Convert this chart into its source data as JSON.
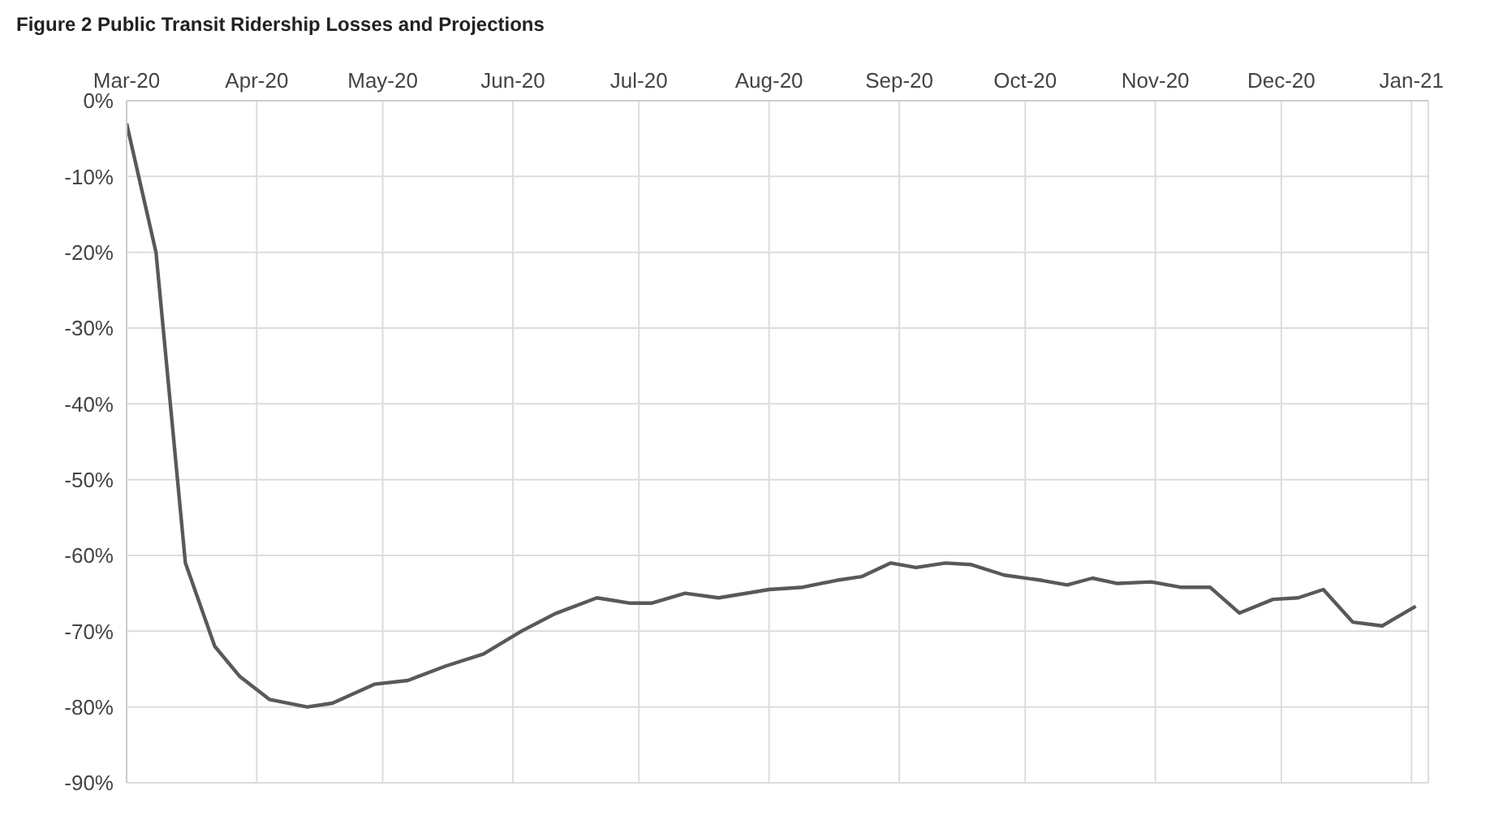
{
  "chart_data": {
    "type": "line",
    "title": "Figure 2 Public Transit Ridership Losses and Projections",
    "x": [
      "2020-03-01",
      "2020-03-08",
      "2020-03-15",
      "2020-03-22",
      "2020-03-28",
      "2020-04-04",
      "2020-04-13",
      "2020-04-19",
      "2020-04-29",
      "2020-05-07",
      "2020-05-16",
      "2020-05-25",
      "2020-06-03",
      "2020-06-11",
      "2020-06-21",
      "2020-06-29",
      "2020-07-04",
      "2020-07-12",
      "2020-07-20",
      "2020-08-01",
      "2020-08-09",
      "2020-08-17",
      "2020-08-23",
      "2020-08-30",
      "2020-09-05",
      "2020-09-12",
      "2020-09-18",
      "2020-09-26",
      "2020-10-05",
      "2020-10-11",
      "2020-10-17",
      "2020-10-23",
      "2020-10-31",
      "2020-11-07",
      "2020-11-14",
      "2020-11-21",
      "2020-11-29",
      "2020-12-05",
      "2020-12-11",
      "2020-12-18",
      "2020-12-25",
      "2021-01-02"
    ],
    "series": [
      {
        "color": "#595959",
        "values": [
          -3,
          -20,
          -61,
          -72,
          -76,
          -79,
          -80,
          -79.5,
          -77,
          -76.5,
          -74.6,
          -73,
          -70,
          -67.7,
          -65.6,
          -66.3,
          -66.3,
          -65,
          -65.6,
          -64.5,
          -64.2,
          -63.3,
          -62.8,
          -61,
          -61.6,
          -61,
          -61.2,
          -62.6,
          -63.3,
          -63.9,
          -63,
          -63.7,
          -63.5,
          -64.2,
          -64.2,
          -67.6,
          -65.8,
          -65.6,
          -64.5,
          -68.8,
          -69.3,
          -66.7
        ]
      }
    ],
    "xlim": [
      "2020-03-01",
      "2021-01-05"
    ],
    "xticks": [
      {
        "value": "2020-03-01",
        "label": "Mar-20"
      },
      {
        "value": "2020-04-01",
        "label": "Apr-20"
      },
      {
        "value": "2020-05-01",
        "label": "May-20"
      },
      {
        "value": "2020-06-01",
        "label": "Jun-20"
      },
      {
        "value": "2020-07-01",
        "label": "Jul-20"
      },
      {
        "value": "2020-08-01",
        "label": "Aug-20"
      },
      {
        "value": "2020-09-01",
        "label": "Sep-20"
      },
      {
        "value": "2020-10-01",
        "label": "Oct-20"
      },
      {
        "value": "2020-11-01",
        "label": "Nov-20"
      },
      {
        "value": "2020-12-01",
        "label": "Dec-20"
      },
      {
        "value": "2021-01-01",
        "label": "Jan-21"
      }
    ],
    "ylim": [
      -90,
      0
    ],
    "yticks": [
      {
        "value": 0,
        "label": "0%"
      },
      {
        "value": -10,
        "label": "-10%"
      },
      {
        "value": -20,
        "label": "-20%"
      },
      {
        "value": -30,
        "label": "-30%"
      },
      {
        "value": -40,
        "label": "-40%"
      },
      {
        "value": -50,
        "label": "-50%"
      },
      {
        "value": -60,
        "label": "-60%"
      },
      {
        "value": -70,
        "label": "-70%"
      },
      {
        "value": -80,
        "label": "-80%"
      },
      {
        "value": -90,
        "label": "-90%"
      }
    ],
    "grid": true,
    "legend": false,
    "marker": "none",
    "line_style": "solid"
  }
}
